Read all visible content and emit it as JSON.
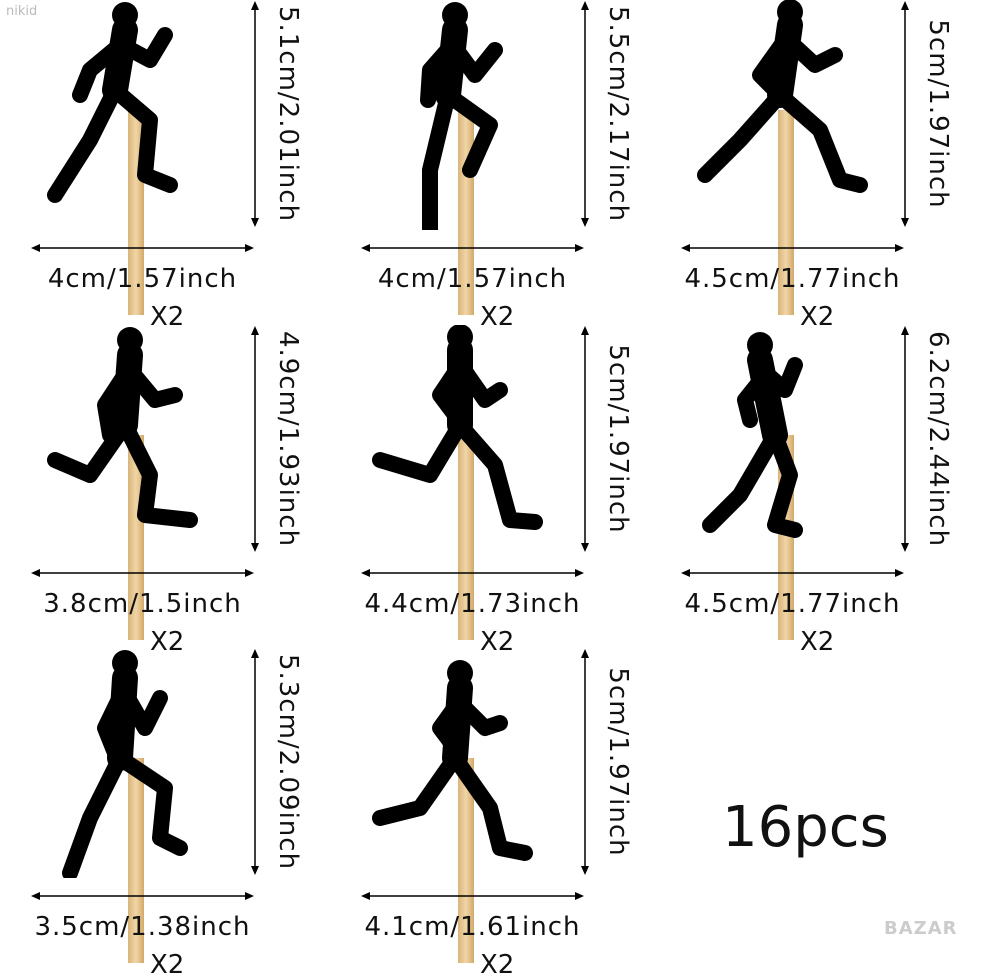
{
  "watermarks": {
    "top": "nikid",
    "bottom": "BAZAR"
  },
  "count_label": "16pcs",
  "items": [
    {
      "height": "5.1cm/2.01inch",
      "width": "4cm/1.57inch",
      "qty": "X2"
    },
    {
      "height": "5.5cm/2.17inch",
      "width": "4cm/1.57inch",
      "qty": "X2"
    },
    {
      "height": "5cm/1.97inch",
      "width": "4.5cm/1.77inch",
      "qty": "X2"
    },
    {
      "height": "4.9cm/1.93inch",
      "width": "3.8cm/1.5inch",
      "qty": "X2"
    },
    {
      "height": "5cm/1.97inch",
      "width": "4.4cm/1.73inch",
      "qty": "X2"
    },
    {
      "height": "6.2cm/2.44inch",
      "width": "4.5cm/1.77inch",
      "qty": "X2"
    },
    {
      "height": "5.3cm/2.09inch",
      "width": "3.5cm/1.38inch",
      "qty": "X2"
    },
    {
      "height": "5cm/1.97inch",
      "width": "4.1cm/1.61inch",
      "qty": "X2"
    }
  ]
}
